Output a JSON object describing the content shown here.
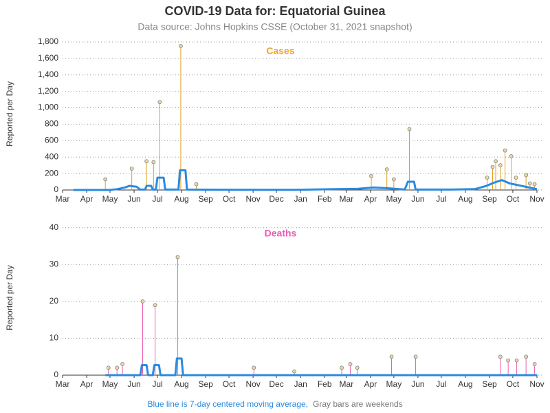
{
  "header": {
    "title": "COVID-19 Data for: Equatorial Guinea",
    "subtitle": "Data source: Johns Hopkins CSSE (October 31, 2021 snapshot)"
  },
  "footer": {
    "blue_note": "Blue line is 7-day centered moving average,",
    "gray_note": "Gray bars are weekends"
  },
  "chart_data": [
    {
      "type": "lollipop",
      "title": "Cases",
      "title_color": "#f5a623",
      "ylabel": "Reported per Day",
      "color": "#e0a020",
      "x": [
        55,
        89,
        108,
        117,
        125,
        152,
        172,
        397,
        417,
        426,
        446,
        546,
        553,
        557,
        563,
        569,
        577,
        583,
        596,
        601,
        607
      ],
      "values": [
        130,
        260,
        350,
        340,
        1070,
        1750,
        70,
        170,
        250,
        130,
        740,
        150,
        280,
        350,
        300,
        480,
        410,
        150,
        180,
        80,
        70
      ],
      "moving_average": {
        "color": "#2a8ae0",
        "x": [
          14,
          60,
          70,
          80,
          86,
          95,
          100,
          106,
          108,
          114,
          116,
          120,
          122,
          130,
          132,
          149,
          151,
          158,
          160,
          200,
          300,
          380,
          400,
          420,
          440,
          444,
          452,
          454,
          500,
          530,
          545,
          555,
          565,
          575,
          585,
          595,
          605,
          610
        ],
        "values": [
          0,
          0,
          10,
          30,
          50,
          40,
          5,
          5,
          50,
          50,
          5,
          5,
          150,
          150,
          5,
          5,
          240,
          240,
          5,
          3,
          2,
          15,
          30,
          20,
          5,
          100,
          100,
          5,
          5,
          10,
          50,
          90,
          120,
          80,
          60,
          40,
          20,
          10
        ]
      },
      "xlim": [
        0,
        610
      ],
      "xticks": [
        {
          "value": 0,
          "label": "Mar"
        },
        {
          "value": 31,
          "label": "Apr"
        },
        {
          "value": 61,
          "label": "May"
        },
        {
          "value": 92,
          "label": "Jun"
        },
        {
          "value": 122,
          "label": "Jul"
        },
        {
          "value": 153,
          "label": "Aug"
        },
        {
          "value": 184,
          "label": "Sep"
        },
        {
          "value": 214,
          "label": "Oct"
        },
        {
          "value": 245,
          "label": "Nov"
        },
        {
          "value": 275,
          "label": "Dec"
        },
        {
          "value": 306,
          "label": "Jan"
        },
        {
          "value": 337,
          "label": "Feb"
        },
        {
          "value": 365,
          "label": "Mar"
        },
        {
          "value": 396,
          "label": "Apr"
        },
        {
          "value": 426,
          "label": "May"
        },
        {
          "value": 457,
          "label": "Jun"
        },
        {
          "value": 487,
          "label": "Jul"
        },
        {
          "value": 518,
          "label": "Aug"
        },
        {
          "value": 549,
          "label": "Sep"
        },
        {
          "value": 579,
          "label": "Oct"
        },
        {
          "value": 610,
          "label": "Nov"
        }
      ],
      "ylim": [
        0,
        1850
      ],
      "yticks": [
        0,
        200,
        400,
        600,
        800,
        {
          "value": 1000,
          "label": "1,000"
        },
        {
          "value": 1200,
          "label": "1,200"
        },
        {
          "value": 1400,
          "label": "1,400"
        },
        {
          "value": 1600,
          "label": "1,600"
        },
        {
          "value": 1800,
          "label": "1,800"
        }
      ]
    },
    {
      "type": "lollipop",
      "title": "Deaths",
      "title_color": "#e85fb0",
      "ylabel": "Reported per Day",
      "color": "#e85fb0",
      "x": [
        59,
        70,
        77,
        103,
        119,
        148,
        246,
        298,
        359,
        370,
        379,
        423,
        454,
        563,
        573,
        584,
        596,
        607
      ],
      "values": [
        2,
        2,
        3,
        20,
        19,
        32,
        2,
        1,
        2,
        3,
        2,
        5,
        5,
        5,
        4,
        4,
        5,
        3
      ],
      "moving_average": {
        "color": "#2a8ae0",
        "x": [
          55,
          100,
          102,
          108,
          110,
          116,
          118,
          124,
          126,
          145,
          147,
          153,
          155,
          610
        ],
        "values": [
          0,
          0,
          2.7,
          2.7,
          0,
          0,
          2.7,
          2.7,
          0,
          0,
          4.5,
          4.5,
          0,
          0
        ]
      },
      "xlim": [
        0,
        610
      ],
      "xticks": [
        {
          "value": 0,
          "label": "Mar"
        },
        {
          "value": 31,
          "label": "Apr"
        },
        {
          "value": 61,
          "label": "May"
        },
        {
          "value": 92,
          "label": "Jun"
        },
        {
          "value": 122,
          "label": "Jul"
        },
        {
          "value": 153,
          "label": "Aug"
        },
        {
          "value": 184,
          "label": "Sep"
        },
        {
          "value": 214,
          "label": "Oct"
        },
        {
          "value": 245,
          "label": "Nov"
        },
        {
          "value": 275,
          "label": "Dec"
        },
        {
          "value": 306,
          "label": "Jan"
        },
        {
          "value": 337,
          "label": "Feb"
        },
        {
          "value": 365,
          "label": "Mar"
        },
        {
          "value": 396,
          "label": "Apr"
        },
        {
          "value": 426,
          "label": "May"
        },
        {
          "value": 457,
          "label": "Jun"
        },
        {
          "value": 487,
          "label": "Jul"
        },
        {
          "value": 518,
          "label": "Aug"
        },
        {
          "value": 549,
          "label": "Sep"
        },
        {
          "value": 579,
          "label": "Oct"
        },
        {
          "value": 610,
          "label": "Nov"
        }
      ],
      "ylim": [
        0,
        42
      ],
      "yticks": [
        0,
        10,
        20,
        30,
        40
      ]
    }
  ]
}
